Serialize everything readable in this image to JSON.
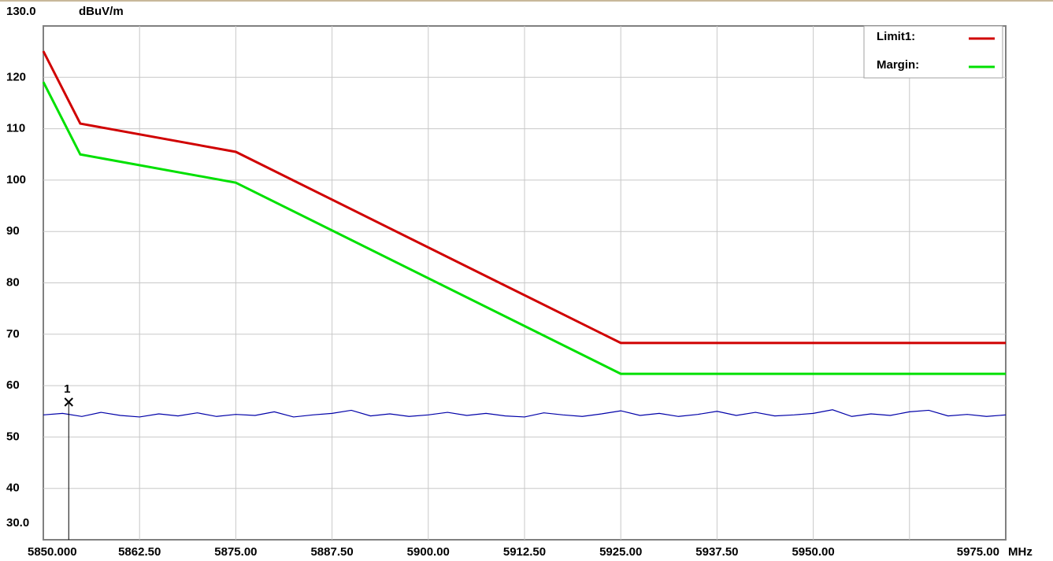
{
  "chart_data": {
    "type": "line",
    "ylim": [
      30,
      130
    ],
    "yticks": [
      {
        "value": 30,
        "label": "30.0"
      },
      40,
      50,
      60,
      70,
      80,
      90,
      100,
      110,
      120,
      {
        "value": 130,
        "label": "130.0"
      }
    ],
    "y_unit": "dBuV/m",
    "xlim": [
      5850,
      5975
    ],
    "xticks": [
      {
        "value": 5850,
        "label": "5850.000"
      },
      {
        "value": 5862.5,
        "label": "5862.50"
      },
      {
        "value": 5875,
        "label": "5875.00"
      },
      {
        "value": 5887.5,
        "label": "5887.50"
      },
      {
        "value": 5900,
        "label": "5900.00"
      },
      {
        "value": 5912.5,
        "label": "5912.50"
      },
      {
        "value": 5925,
        "label": "5925.00"
      },
      {
        "value": 5937.5,
        "label": "5937.50"
      },
      {
        "value": 5950,
        "label": "5950.00"
      },
      {
        "value": 5962.5,
        "label": null
      },
      {
        "value": 5975,
        "label": "5975.00"
      }
    ],
    "x_unit": "MHz",
    "grid": true,
    "legend": "upper right",
    "series": [
      {
        "name": "Limit1:",
        "color": "#d00000",
        "x": [
          5850,
          5854.8,
          5875,
          5925,
          5975
        ],
        "values": [
          125.1,
          111.0,
          105.5,
          68.3,
          68.3
        ]
      },
      {
        "name": "Margin:",
        "color": "#00e000",
        "x": [
          5850,
          5854.8,
          5875,
          5925,
          5975
        ],
        "values": [
          119.1,
          105.0,
          99.5,
          62.3,
          62.3
        ]
      }
    ],
    "trace": {
      "color": "#0000a8",
      "x": [
        5850,
        5852.5,
        5855,
        5857.5,
        5860,
        5862.5,
        5865,
        5867.5,
        5870,
        5872.5,
        5875,
        5877.5,
        5880,
        5882.5,
        5885,
        5887.5,
        5890,
        5892.5,
        5895,
        5897.5,
        5900,
        5902.5,
        5905,
        5907.5,
        5910,
        5912.5,
        5915,
        5917.5,
        5920,
        5922.5,
        5925,
        5927.5,
        5930,
        5932.5,
        5935,
        5937.5,
        5940,
        5942.5,
        5945,
        5947.5,
        5950,
        5952.5,
        5955,
        5957.5,
        5960,
        5962.5,
        5965,
        5967.5,
        5970,
        5972.5,
        5975
      ],
      "values": [
        54.3,
        54.6,
        54.0,
        54.8,
        54.2,
        53.9,
        54.5,
        54.1,
        54.7,
        54.0,
        54.4,
        54.2,
        54.9,
        53.9,
        54.3,
        54.6,
        55.2,
        54.1,
        54.5,
        54.0,
        54.3,
        54.8,
        54.2,
        54.6,
        54.1,
        53.9,
        54.7,
        54.3,
        54.0,
        54.5,
        55.1,
        54.2,
        54.6,
        54.0,
        54.4,
        55.0,
        54.2,
        54.8,
        54.1,
        54.3,
        54.6,
        55.3,
        54.0,
        54.5,
        54.2,
        54.9,
        55.2,
        54.1,
        54.4,
        54.0,
        54.3
      ]
    },
    "markers": [
      {
        "label": "1",
        "x": 5853.3,
        "value": 56.8
      }
    ]
  }
}
